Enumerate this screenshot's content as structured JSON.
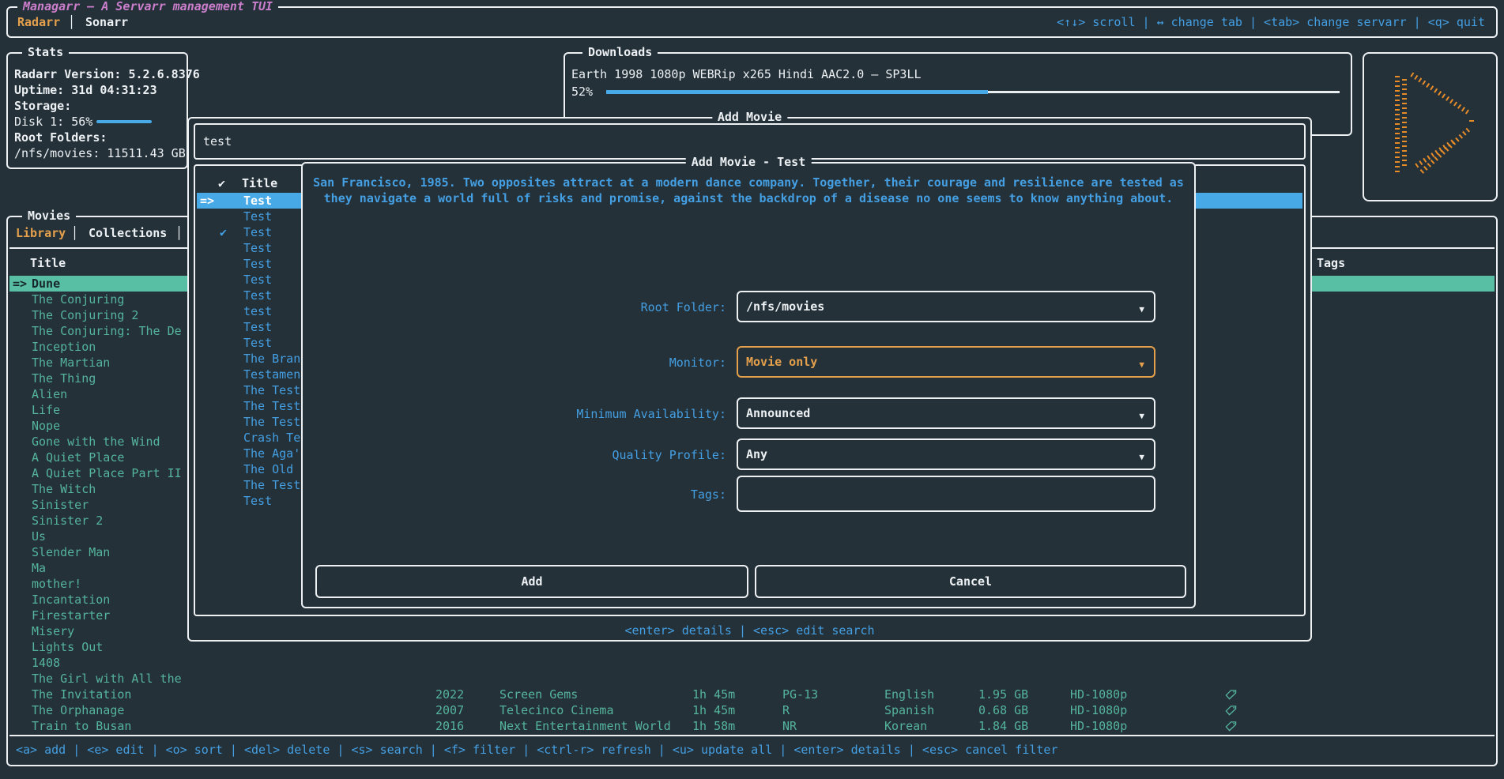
{
  "app": {
    "title": "Managarr — A Servarr management TUI",
    "tabs": {
      "radarr": "Radarr",
      "sonarr": "Sonarr",
      "separator": "│"
    },
    "help": "<↑↓> scroll | ↔ change tab | <tab> change servarr | <q> quit"
  },
  "stats": {
    "title": "Stats",
    "version": "Radarr Version:  5.2.6.8376",
    "uptime": "Uptime: 31d 04:31:23",
    "storage_label": "Storage:",
    "disk_label": "Disk 1: 56%",
    "disk_percent": 56,
    "root_folders_label": "Root Folders:",
    "root_folder_value": "/nfs/movies: 11511.43 GB"
  },
  "downloads": {
    "title": "Downloads",
    "item": "Earth 1998 1080p WEBRip x265 Hindi AAC2.0 – SP3LL",
    "percent_label": "52%",
    "percent": 52
  },
  "movies": {
    "title": "Movies",
    "tab_library": "Library",
    "tab_collections": "Collections",
    "tab_separator": "│",
    "header_title": "Title",
    "header_tags": "Tags",
    "selected_prefix": "=>",
    "selected_index": 0,
    "items": [
      "Dune",
      "The Conjuring",
      "The Conjuring 2",
      "The Conjuring: The De",
      "Inception",
      "The Martian",
      "The Thing",
      "Alien",
      "Life",
      "Nope",
      "Gone with the Wind",
      "A Quiet Place",
      "A Quiet Place Part II",
      "The Witch",
      "Sinister",
      "Sinister 2",
      "Us",
      "Slender Man",
      "Ma",
      "mother!",
      "Incantation",
      "Firestarter",
      "Misery",
      "Lights Out",
      "1408",
      "The Girl with All the",
      "The Invitation",
      "The Orphanage",
      "Train to Busan"
    ],
    "visible_detail_rows": [
      {
        "year": "2022",
        "studio": "Screen Gems",
        "runtime": "1h 45m",
        "rating": "PG-13",
        "language": "English",
        "size": "1.95 GB",
        "quality": "HD-1080p"
      },
      {
        "year": "2007",
        "studio": "Telecinco Cinema",
        "runtime": "1h 45m",
        "rating": "R",
        "language": "Spanish",
        "size": "0.68 GB",
        "quality": "HD-1080p"
      },
      {
        "year": "2016",
        "studio": "Next Entertainment World",
        "runtime": "1h 58m",
        "rating": "NR",
        "language": "Korean",
        "size": "1.84 GB",
        "quality": "HD-1080p"
      }
    ],
    "keybinds": "<a> add | <e> edit | <o> sort | <del> delete | <s> search | <f> filter | <ctrl-r> refresh | <u> update all | <enter> details | <esc> cancel filter"
  },
  "add_movie": {
    "title": "Add Movie",
    "search_value": "test",
    "header_title": "Title",
    "check_glyph": "✔",
    "selected_prefix": "=>",
    "selected_index": 0,
    "checked_index": 2,
    "results": [
      "Test",
      "Test",
      "Test",
      "Test",
      "Test",
      "Test",
      "Test",
      "test",
      "Test",
      "Test",
      "The Bran",
      "Testamen",
      "The Test",
      "The Test",
      "The Test",
      "Crash Te",
      "The Aga'",
      "The Old",
      "The Test",
      "Test"
    ],
    "footer": "<enter> details | <esc> edit search"
  },
  "modal": {
    "title": "Add Movie - Test",
    "description_line1": "San Francisco, 1985. Two opposites attract at a modern dance company. Together, their courage and resilience are tested as",
    "description_line2": "they navigate a world full of risks and promise, against the backdrop of a disease no one seems to know anything about.",
    "fields": [
      {
        "label": "Root Folder:",
        "value": "/nfs/movies"
      },
      {
        "label": "Monitor:",
        "value": "Movie only"
      },
      {
        "label": "Minimum Availability:",
        "value": "Announced"
      },
      {
        "label": "Quality Profile:",
        "value": "Any"
      },
      {
        "label": "Tags:",
        "value": ""
      }
    ],
    "dropdown_glyph": "▼",
    "add_label": "Add",
    "cancel_label": "Cancel"
  },
  "colors": {
    "accent_blue": "#449fe3",
    "accent_teal": "#55b49c",
    "accent_orange": "#e5a04c",
    "accent_magenta": "#cb7ecb",
    "logo_orange": "#e78c28"
  }
}
